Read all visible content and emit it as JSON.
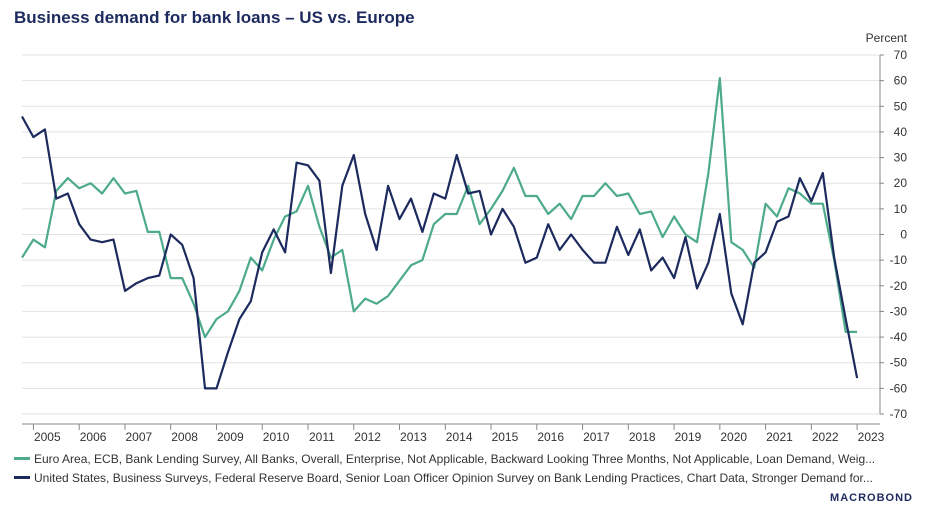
{
  "chart_data": {
    "type": "line",
    "title": "Business demand for bank loans – US vs. Europe",
    "ylabel": "Percent",
    "xlabel": "",
    "ylim": [
      -70,
      70
    ],
    "yticks": [
      70,
      60,
      50,
      40,
      30,
      20,
      10,
      0,
      -10,
      -20,
      -30,
      -40,
      -50,
      -60,
      -70
    ],
    "xlim": [
      2004.75,
      2023.5
    ],
    "categories": [
      "2005",
      "2006",
      "2007",
      "2008",
      "2009",
      "2010",
      "2011",
      "2012",
      "2013",
      "2014",
      "2015",
      "2016",
      "2017",
      "2018",
      "2019",
      "2020",
      "2021",
      "2022",
      "2023"
    ],
    "grid": true,
    "legend_position": "bottom",
    "series": [
      {
        "name": "Euro Area, ECB, Bank Lending Survey, All Banks, Overall, Enterprise, Not Applicable, Backward Looking Three Months, Not Applicable, Loan Demand, Weig...",
        "color": "#4daa8c",
        "x": [
          2004.75,
          2005.0,
          2005.25,
          2005.5,
          2005.75,
          2006.0,
          2006.25,
          2006.5,
          2006.75,
          2007.0,
          2007.25,
          2007.5,
          2007.75,
          2008.0,
          2008.25,
          2008.5,
          2008.75,
          2009.0,
          2009.25,
          2009.5,
          2009.75,
          2010.0,
          2010.25,
          2010.5,
          2010.75,
          2011.0,
          2011.25,
          2011.5,
          2011.75,
          2012.0,
          2012.25,
          2012.5,
          2012.75,
          2013.0,
          2013.25,
          2013.5,
          2013.75,
          2014.0,
          2014.25,
          2014.5,
          2014.75,
          2015.0,
          2015.25,
          2015.5,
          2015.75,
          2016.0,
          2016.25,
          2016.5,
          2016.75,
          2017.0,
          2017.25,
          2017.5,
          2017.75,
          2018.0,
          2018.25,
          2018.5,
          2018.75,
          2019.0,
          2019.25,
          2019.5,
          2019.75,
          2020.0,
          2020.25,
          2020.5,
          2020.75,
          2021.0,
          2021.25,
          2021.5,
          2021.75,
          2022.0,
          2022.25,
          2022.5,
          2022.75,
          2023.0
        ],
        "values": [
          -9,
          -2,
          -5,
          17,
          22,
          18,
          20,
          16,
          22,
          16,
          17,
          1,
          1,
          -17,
          -17,
          -27,
          -40,
          -33,
          -30,
          -22,
          -9,
          -14,
          -2,
          7,
          9,
          19,
          3,
          -9,
          -6,
          -30,
          -25,
          -27,
          -24,
          -18,
          -12,
          -10,
          4,
          8,
          8,
          19,
          4,
          10,
          17,
          26,
          15,
          15,
          8,
          12,
          6,
          15,
          15,
          20,
          15,
          16,
          8,
          9,
          -1,
          7,
          0,
          -3,
          24,
          61,
          -3,
          -6,
          -13,
          12,
          7,
          18,
          16,
          12,
          12,
          -10,
          -38,
          -38
        ]
      },
      {
        "name": "United States, Business Surveys, Federal Reserve Board, Senior Loan Officer Opinion Survey on Bank Lending Practices, Chart Data, Stronger Demand for...",
        "color": "#1c2a5e",
        "x": [
          2004.75,
          2005.0,
          2005.25,
          2005.5,
          2005.75,
          2006.0,
          2006.25,
          2006.5,
          2006.75,
          2007.0,
          2007.25,
          2007.5,
          2007.75,
          2008.0,
          2008.25,
          2008.5,
          2008.75,
          2009.0,
          2009.25,
          2009.5,
          2009.75,
          2010.0,
          2010.25,
          2010.5,
          2010.75,
          2011.0,
          2011.25,
          2011.5,
          2011.75,
          2012.0,
          2012.25,
          2012.5,
          2012.75,
          2013.0,
          2013.25,
          2013.5,
          2013.75,
          2014.0,
          2014.25,
          2014.5,
          2014.75,
          2015.0,
          2015.25,
          2015.5,
          2015.75,
          2016.0,
          2016.25,
          2016.5,
          2016.75,
          2017.0,
          2017.25,
          2017.5,
          2017.75,
          2018.0,
          2018.25,
          2018.5,
          2018.75,
          2019.0,
          2019.25,
          2019.5,
          2019.75,
          2020.0,
          2020.25,
          2020.5,
          2020.75,
          2021.0,
          2021.25,
          2021.5,
          2021.75,
          2022.0,
          2022.25,
          2022.5,
          2022.75,
          2023.0
        ],
        "values": [
          46,
          38,
          41,
          14,
          16,
          4,
          -2,
          -3,
          -2,
          -22,
          -19,
          -17,
          -16,
          0,
          -4,
          -17,
          -60,
          -60,
          -46,
          -33,
          -26,
          -7,
          2,
          -7,
          28,
          27,
          21,
          -15,
          19,
          31,
          8,
          -6,
          19,
          6,
          14,
          1,
          16,
          14,
          31,
          16,
          17,
          0,
          10,
          3,
          -11,
          -9,
          4,
          -6,
          0,
          -6,
          -11,
          -11,
          3,
          -8,
          2,
          -14,
          -9,
          -17,
          -1,
          -21,
          -11,
          8,
          -23,
          -35,
          -11,
          -7,
          5,
          7,
          22,
          13,
          24,
          -9,
          -33,
          -56
        ]
      }
    ]
  },
  "legend": {
    "euro": "Euro Area, ECB, Bank Lending Survey, All Banks, Overall, Enterprise, Not Applicable, Backward Looking Three Months, Not Applicable, Loan Demand, Weig...",
    "us": "United States, Business Surveys, Federal Reserve Board, Senior Loan Officer Opinion Survey on Bank Lending Practices, Chart Data, Stronger Demand for..."
  },
  "brand": "MACROBOND",
  "colors": {
    "euro": "#4daa8c",
    "us": "#1c2a5e",
    "title": "#1c2a5e"
  }
}
